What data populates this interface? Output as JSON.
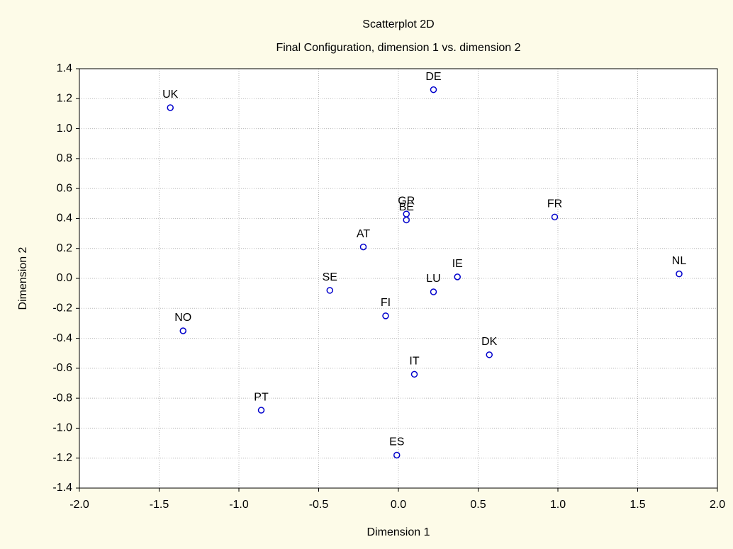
{
  "chart_data": {
    "type": "scatter",
    "title": "Scatterplot 2D",
    "subtitle": "Final Configuration, dimension 1  vs. dimension 2",
    "x_label": "Dimension 1",
    "y_label": "Dimension 2",
    "color": "#0000cc",
    "grid": true,
    "labels": [
      "UK",
      "DE",
      "GR",
      "BE",
      "FR",
      "AT",
      "NL",
      "IE",
      "SE",
      "LU",
      "FI",
      "NO",
      "DK",
      "IT",
      "PT",
      "ES"
    ],
    "x": [
      -1.43,
      0.22,
      0.05,
      0.05,
      0.98,
      -0.22,
      1.76,
      0.37,
      -0.43,
      0.22,
      -0.08,
      -1.35,
      0.57,
      0.1,
      -0.86,
      -0.01
    ],
    "values": [
      1.14,
      1.26,
      0.43,
      0.39,
      0.41,
      0.21,
      0.03,
      0.01,
      -0.08,
      -0.09,
      -0.25,
      -0.35,
      -0.51,
      -0.64,
      -0.88,
      -1.18
    ],
    "xlim": [
      -2.0,
      2.0
    ],
    "xticks": [
      {
        "value": -2,
        "label": "-2.0"
      },
      -1.5,
      {
        "value": -1,
        "label": "-1.0"
      },
      -0.5,
      {
        "value": 0,
        "label": "0.0"
      },
      0.5,
      {
        "value": 1,
        "label": "1.0"
      },
      1.5,
      {
        "value": 2,
        "label": "2.0"
      }
    ],
    "ylim": [
      -1.4,
      1.4
    ],
    "yticks": [
      -1.4,
      -1.2,
      {
        "value": -1,
        "label": "-1.0"
      },
      -0.8,
      -0.6,
      -0.4,
      -0.2,
      {
        "value": 0,
        "label": "0.0"
      },
      0.2,
      0.4,
      0.6,
      0.8,
      {
        "value": 1,
        "label": "1.0"
      },
      1.2,
      1.4
    ]
  }
}
